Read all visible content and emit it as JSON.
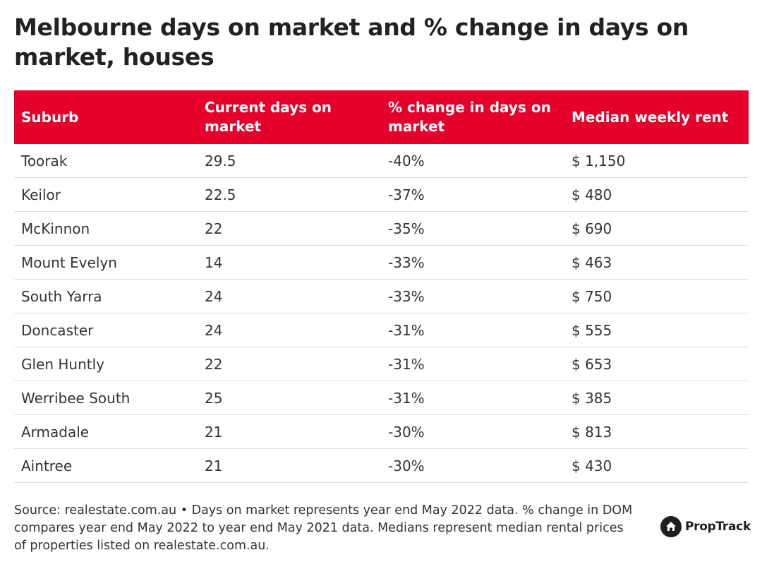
{
  "title": "Melbourne days on market and % change in days on market, houses",
  "colors": {
    "header_bg": "#e4002b",
    "header_text": "#ffffff",
    "row_divider": "#dcdcdc",
    "text": "#333333"
  },
  "chart_data": {
    "type": "table",
    "title": "Melbourne days on market and % change in days on market, houses",
    "columns": [
      "Suburb",
      "Current days on market",
      "% change in days on market",
      "Median weekly rent"
    ],
    "rows": [
      [
        "Toorak",
        "29.5",
        "-40%",
        "$ 1,150"
      ],
      [
        "Keilor",
        "22.5",
        "-37%",
        "$ 480"
      ],
      [
        "McKinnon",
        "22",
        "-35%",
        "$ 690"
      ],
      [
        "Mount Evelyn",
        "14",
        "-33%",
        "$ 463"
      ],
      [
        "South Yarra",
        "24",
        "-33%",
        "$ 750"
      ],
      [
        "Doncaster",
        "24",
        "-31%",
        "$ 555"
      ],
      [
        "Glen Huntly",
        "22",
        "-31%",
        "$ 653"
      ],
      [
        "Werribee South",
        "25",
        "-31%",
        "$ 385"
      ],
      [
        "Armadale",
        "21",
        "-30%",
        "$ 813"
      ],
      [
        "Aintree",
        "21",
        "-30%",
        "$ 430"
      ]
    ]
  },
  "footer": {
    "source_text": "Source: realestate.com.au • Days on market represents year end May 2022 data. % change in DOM compares year end May 2022 to year end May 2021 data. Medians represent median rental prices of properties listed on realestate.com.au."
  },
  "brand": {
    "name": "PropTrack",
    "icon": "house-icon"
  }
}
